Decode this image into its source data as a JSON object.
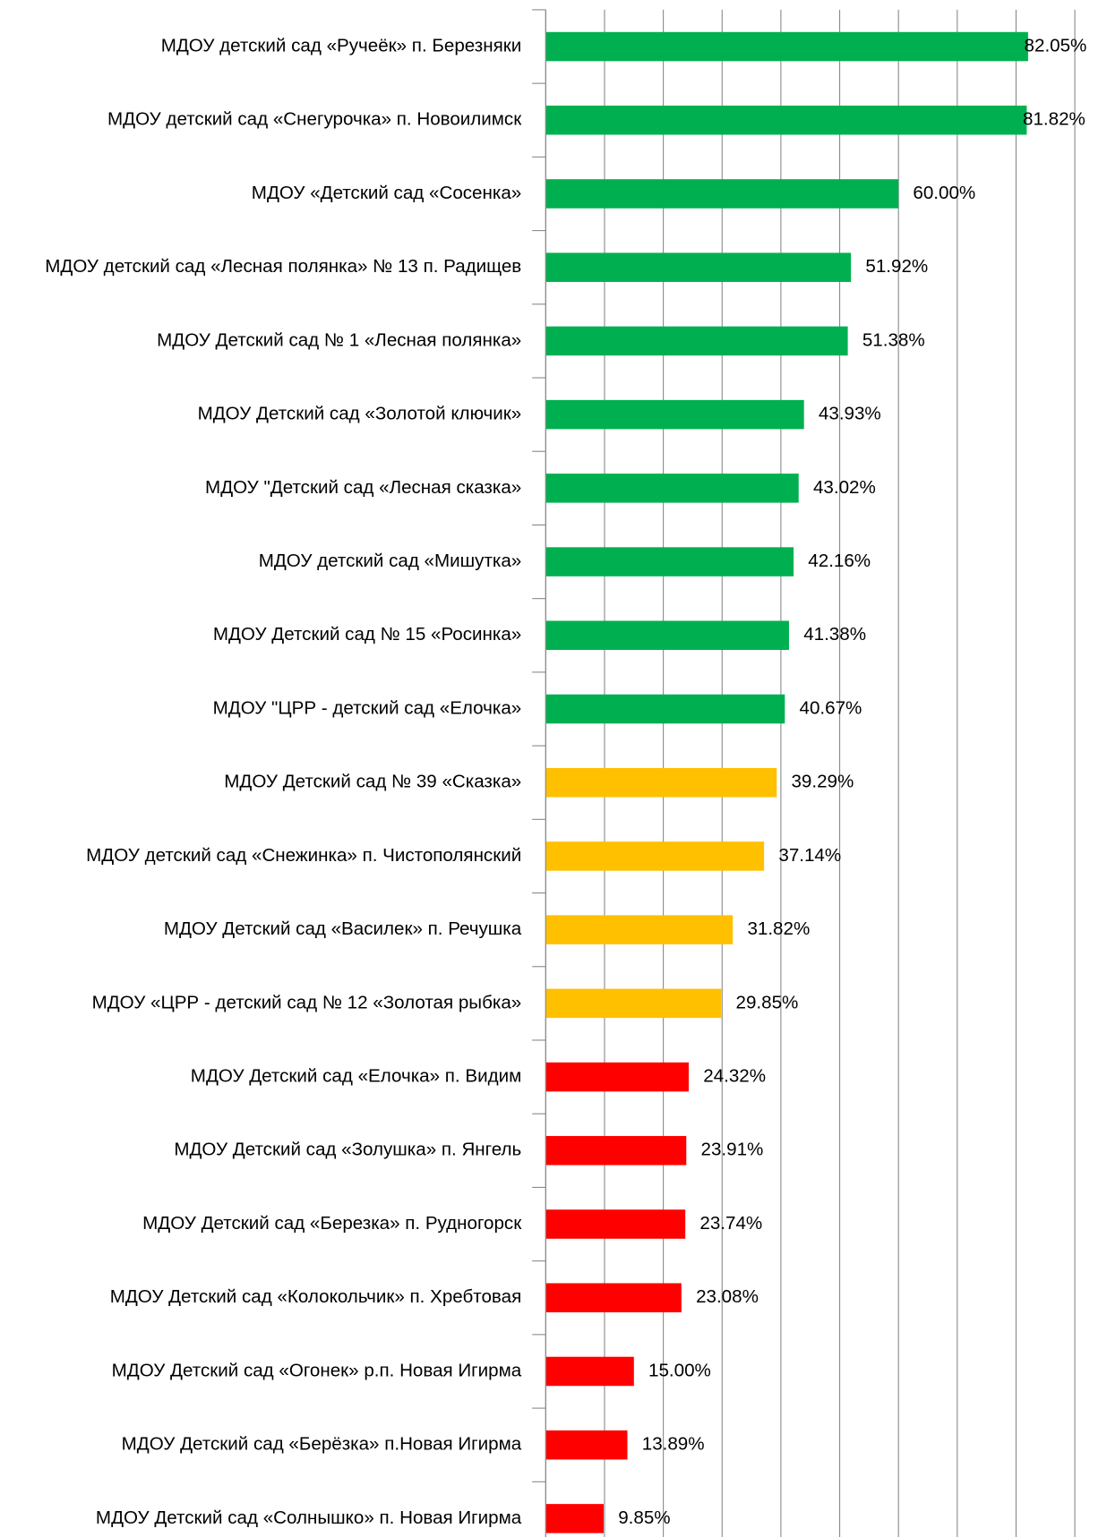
{
  "chart_data": {
    "type": "bar",
    "orientation": "horizontal",
    "categories": [
      "МДОУ детский сад «Ручеёк» п. Березняки",
      "МДОУ детский сад «Снегурочка» п. Новоилимск",
      "МДОУ «Детский сад «Сосенка»",
      "МДОУ детский сад «Лесная полянка» № 13 п. Радищев",
      "МДОУ Детский сад № 1 «Лесная полянка»",
      "МДОУ Детский сад «Золотой ключик»",
      "МДОУ \"Детский сад «Лесная сказка»",
      "МДОУ детский сад «Мишутка»",
      "МДОУ Детский сад № 15 «Росинка»",
      "МДОУ \"ЦРР - детский сад «Елочка»",
      "МДОУ Детский сад № 39 «Сказка»",
      "МДОУ детский сад «Снежинка» п. Чистополянский",
      "МДОУ Детский сад «Василек» п. Речушка",
      "МДОУ «ЦРР - детский сад № 12 «Золотая рыбка»",
      "МДОУ Детский сад «Елочка» п. Видим",
      "МДОУ Детский сад «Золушка» п. Янгель",
      "МДОУ Детский сад «Березка» п. Рудногорск",
      "МДОУ Детский сад «Колокольчик» п. Хребтовая",
      "МДОУ Детский сад «Огонек» р.п. Новая Игирма",
      "МДОУ Детский сад «Берёзка» п.Новая Игирма",
      "МДОУ Детский сад «Солнышко» п. Новая Игирма"
    ],
    "values": [
      82.05,
      81.82,
      60.0,
      51.92,
      51.38,
      43.93,
      43.02,
      42.16,
      41.38,
      40.67,
      39.29,
      37.14,
      31.82,
      29.85,
      24.32,
      23.91,
      23.74,
      23.08,
      15.0,
      13.89,
      9.85
    ],
    "value_labels": [
      "82.05%",
      "81.82%",
      "60.00%",
      "51.92%",
      "51.38%",
      "43.93%",
      "43.02%",
      "42.16%",
      "41.38%",
      "40.67%",
      "39.29%",
      "37.14%",
      "31.82%",
      "29.85%",
      "24.32%",
      "23.91%",
      "23.74%",
      "23.08%",
      "15.00%",
      "13.89%",
      "9.85%"
    ],
    "colors": [
      "#00b050",
      "#00b050",
      "#00b050",
      "#00b050",
      "#00b050",
      "#00b050",
      "#00b050",
      "#00b050",
      "#00b050",
      "#00b050",
      "#ffc000",
      "#ffc000",
      "#ffc000",
      "#ffc000",
      "#ff0000",
      "#ff0000",
      "#ff0000",
      "#ff0000",
      "#ff0000",
      "#ff0000",
      "#ff0000"
    ],
    "xlim": [
      0,
      90
    ],
    "xticks": [
      0,
      10,
      20,
      30,
      40,
      50,
      60,
      70,
      80,
      90
    ],
    "grid": true
  }
}
